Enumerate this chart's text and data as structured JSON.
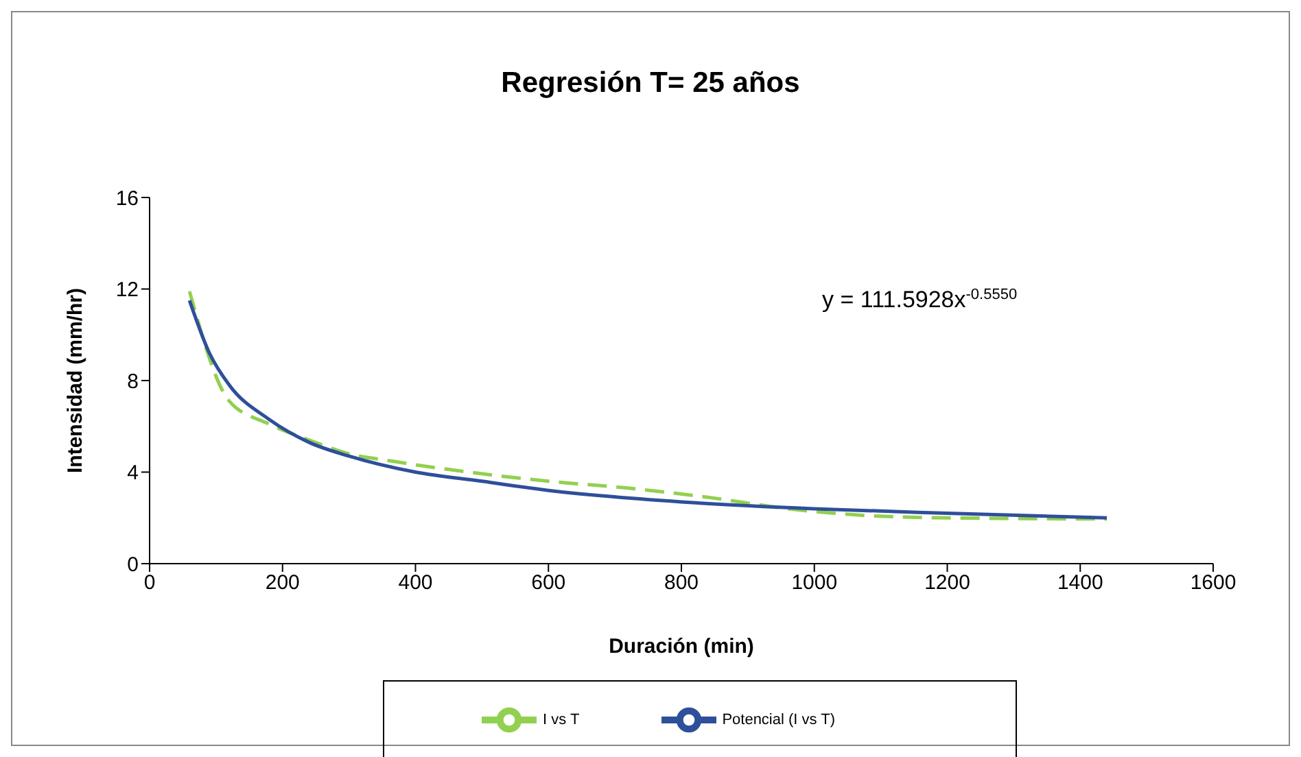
{
  "chart_data": {
    "type": "line",
    "title": "Regresión T= 25 años",
    "xlabel": "Duración (min)",
    "ylabel": "Intensidad (mm/hr)",
    "xlim": [
      0,
      1600
    ],
    "xticks": [
      0,
      200,
      400,
      600,
      800,
      1000,
      1200,
      1400,
      1600
    ],
    "ylim": [
      0,
      16
    ],
    "yticks": [
      0,
      4,
      8,
      12,
      16
    ],
    "grid": false,
    "legend": "bottom",
    "marker": "none",
    "annotations": [
      "y = 111.5928x$^{-0.5550}$"
    ],
    "series": [
      {
        "name": "I vs T",
        "color": "#92d050",
        "line_style": "dashed",
        "x": [
          60,
          120,
          180,
          240,
          300,
          360,
          480,
          600,
          720,
          840,
          960,
          1080,
          1200,
          1440
        ],
        "values": [
          11.9,
          7.1,
          6.1,
          5.4,
          4.8,
          4.5,
          4.0,
          3.6,
          3.3,
          2.9,
          2.4,
          2.1,
          2.0,
          1.95
        ]
      },
      {
        "name": "Potencial (I vs T)",
        "color": "#2e4f9a",
        "line_style": "solid",
        "x": [
          60,
          90,
          120,
          180,
          240,
          300,
          400,
          500,
          600,
          800,
          1000,
          1200,
          1440
        ],
        "values": [
          11.5,
          9.2,
          7.8,
          6.3,
          5.3,
          4.7,
          4.0,
          3.6,
          3.2,
          2.7,
          2.4,
          2.2,
          2.0
        ]
      }
    ]
  }
}
